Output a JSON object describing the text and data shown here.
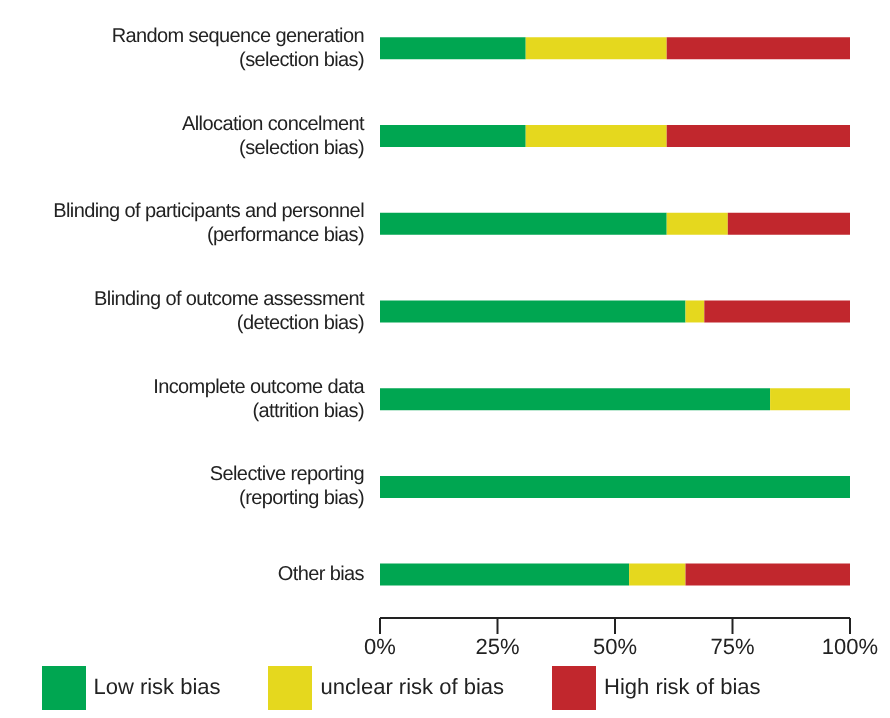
{
  "chart_data": {
    "type": "bar",
    "orientation": "horizontal",
    "stacked": true,
    "categories": [
      "Random sequence generation\n(selection bias)",
      "Allocation concelment\n(selection bias)",
      "Blinding of participants and personnel\n(performance bias)",
      "Blinding of outcome assessment\n(detection bias)",
      "Incomplete outcome data\n(attrition bias)",
      "Selective reporting\n(reporting bias)",
      "Other bias"
    ],
    "series": [
      {
        "name": "Low risk bias",
        "color": "#00a651",
        "values": [
          31,
          31,
          61,
          65,
          83,
          100,
          53
        ]
      },
      {
        "name": "unclear risk of bias",
        "color": "#e5d81e",
        "values": [
          30,
          30,
          13,
          4,
          17,
          0,
          12
        ]
      },
      {
        "name": "High risk of bias",
        "color": "#c1272d",
        "values": [
          39,
          39,
          26,
          31,
          0,
          0,
          35
        ]
      }
    ],
    "xlim": [
      0,
      100
    ],
    "xticks": [
      {
        "value": 0,
        "label": "0%"
      },
      {
        "value": 25,
        "label": "25%"
      },
      {
        "value": 50,
        "label": "50%"
      },
      {
        "value": 75,
        "label": "75%"
      },
      {
        "value": 100,
        "label": "100%"
      }
    ],
    "grid": false,
    "legend": "bottom"
  }
}
